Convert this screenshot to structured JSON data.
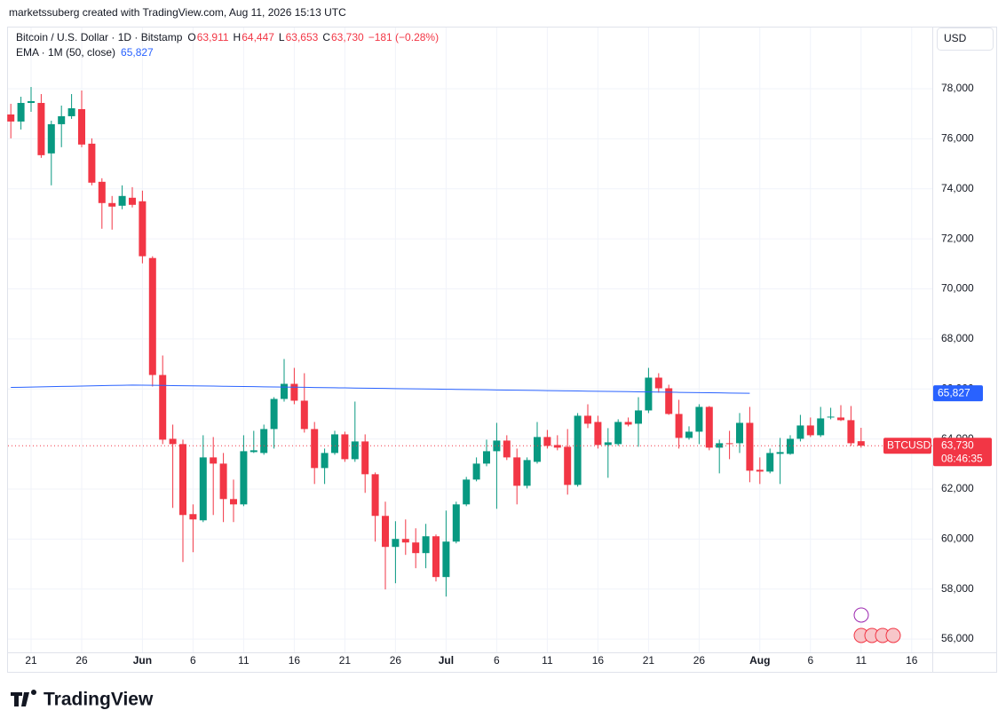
{
  "header": {
    "credit": "marketssuberg created with TradingView.com, Aug 11, 2026 15:13 UTC"
  },
  "legend": {
    "symbol": "Bitcoin / U.S. Dollar · 1D · Bitstamp",
    "ohlc": [
      {
        "key": "O",
        "value": "63,911"
      },
      {
        "key": "H",
        "value": "64,447"
      },
      {
        "key": "L",
        "value": "63,653"
      },
      {
        "key": "C",
        "value": "63,730"
      }
    ],
    "change": "−181 (−0.28%)",
    "indicator": "EMA · 1M (50, close)",
    "indicator_value": "65,827"
  },
  "currency_button": "USD",
  "footer": {
    "logo": "TradingView"
  },
  "chart_data": {
    "type": "candlestick",
    "up_color": "#089981",
    "down_color": "#f23645",
    "grid": true,
    "categories": [
      "2026-05-19",
      "2026-05-20",
      "2026-05-21",
      "2026-05-22",
      "2026-05-23",
      "2026-05-24",
      "2026-05-25",
      "2026-05-26",
      "2026-05-27",
      "2026-05-28",
      "2026-05-29",
      "2026-05-30",
      "2026-05-31",
      "2026-06-01",
      "2026-06-02",
      "2026-06-03",
      "2026-06-04",
      "2026-06-05",
      "2026-06-06",
      "2026-06-07",
      "2026-06-08",
      "2026-06-09",
      "2026-06-10",
      "2026-06-11",
      "2026-06-12",
      "2026-06-13",
      "2026-06-14",
      "2026-06-15",
      "2026-06-16",
      "2026-06-17",
      "2026-06-18",
      "2026-06-19",
      "2026-06-20",
      "2026-06-21",
      "2026-06-22",
      "2026-06-23",
      "2026-06-24",
      "2026-06-25",
      "2026-06-26",
      "2026-06-27",
      "2026-06-28",
      "2026-06-29",
      "2026-06-30",
      "2026-07-01",
      "2026-07-02",
      "2026-07-03",
      "2026-07-04",
      "2026-07-05",
      "2026-07-06",
      "2026-07-07",
      "2026-07-08",
      "2026-07-09",
      "2026-07-10",
      "2026-07-11",
      "2026-07-12",
      "2026-07-13",
      "2026-07-14",
      "2026-07-15",
      "2026-07-16",
      "2026-07-17",
      "2026-07-18",
      "2026-07-19",
      "2026-07-20",
      "2026-07-21",
      "2026-07-22",
      "2026-07-23",
      "2026-07-24",
      "2026-07-25",
      "2026-07-26",
      "2026-07-27",
      "2026-07-28",
      "2026-07-29",
      "2026-07-30",
      "2026-07-31",
      "2026-08-01",
      "2026-08-02",
      "2026-08-03",
      "2026-08-04",
      "2026-08-05",
      "2026-08-06",
      "2026-08-07",
      "2026-08-08",
      "2026-08-09",
      "2026-08-10",
      "2026-08-11"
    ],
    "open": [
      76974,
      76691,
      77435,
      77435,
      75417,
      76585,
      76904,
      77187,
      75806,
      74282,
      73432,
      73325,
      73644,
      73503,
      71235,
      66558,
      64007,
      63795,
      60996,
      60748,
      63263,
      63015,
      61598,
      61385,
      63476,
      63440,
      64397,
      65601,
      66204,
      65531,
      64397,
      62838,
      63440,
      64184,
      63192,
      63901,
      62590,
      60925,
      59685,
      60004,
      59862,
      59437,
      60110,
      58480,
      59897,
      61385,
      62377,
      63015,
      63511,
      63936,
      63263,
      62129,
      63086,
      64078,
      63759,
      63688,
      62164,
      64929,
      64680,
      63759,
      63795,
      64680,
      64610,
      65141,
      66452,
      66027,
      65000,
      64043,
      64291,
      65283,
      63653,
      63830,
      63830,
      64645,
      62767,
      62696,
      63405,
      63405,
      64007,
      64539,
      64149,
      64858,
      64858,
      64752,
      63911
    ],
    "high": [
      77400,
      77683,
      78073,
      77789,
      76726,
      77329,
      77789,
      77931,
      76018,
      74424,
      73715,
      74140,
      74069,
      73928,
      71306,
      67338,
      64574,
      63972,
      61385,
      64149,
      64078,
      63440,
      62377,
      64149,
      64326,
      64574,
      65672,
      67196,
      66842,
      66629,
      64680,
      63617,
      64326,
      64291,
      65495,
      64184,
      62661,
      61492,
      60712,
      60783,
      60429,
      60606,
      60181,
      61137,
      61492,
      62484,
      63263,
      63972,
      64645,
      64149,
      63617,
      63263,
      64680,
      64361,
      64149,
      64397,
      65035,
      65389,
      64929,
      64433,
      64787,
      64858,
      65672,
      66842,
      66629,
      66169,
      65566,
      64503,
      65389,
      65318,
      63972,
      64326,
      65035,
      65283,
      63263,
      63617,
      64043,
      64149,
      64964,
      64858,
      65283,
      65247,
      65354,
      65318,
      64447
    ],
    "low": [
      76018,
      76372,
      77081,
      75240,
      74140,
      75665,
      76797,
      75665,
      74140,
      72404,
      72369,
      73184,
      73255,
      71022,
      66098,
      63795,
      61244,
      59082,
      59472,
      60677,
      60960,
      60677,
      60677,
      61314,
      63440,
      63369,
      63617,
      65495,
      65389,
      64255,
      62200,
      62200,
      63369,
      63086,
      63086,
      61846,
      59897,
      57984,
      58232,
      59366,
      58834,
      58834,
      58303,
      57700,
      59827,
      61314,
      62306,
      62909,
      61208,
      63157,
      61385,
      62023,
      63015,
      63617,
      63547,
      61775,
      62094,
      64433,
      63617,
      62448,
      63724,
      64503,
      63688,
      65035,
      65850,
      64964,
      63617,
      63972,
      63795,
      63547,
      62625,
      63192,
      63440,
      62271,
      62200,
      62625,
      62200,
      63369,
      63901,
      64078,
      64078,
      64787,
      64716,
      63724,
      63653
    ],
    "close": [
      76691,
      77435,
      77506,
      75346,
      76585,
      76904,
      77222,
      75771,
      74247,
      73432,
      73290,
      73715,
      73361,
      71306,
      66558,
      63972,
      63795,
      60960,
      60783,
      63263,
      63015,
      61598,
      61385,
      63511,
      63547,
      64397,
      65601,
      66204,
      65531,
      64397,
      62838,
      63440,
      64184,
      63192,
      63901,
      62590,
      60925,
      59685,
      60004,
      59862,
      59437,
      60110,
      58480,
      59897,
      61385,
      62377,
      63015,
      63511,
      63936,
      63263,
      62129,
      63157,
      64078,
      63724,
      63653,
      62164,
      64929,
      64610,
      63759,
      63865,
      64680,
      64574,
      65141,
      66452,
      66027,
      65000,
      64043,
      64291,
      65283,
      63653,
      63830,
      63795,
      64645,
      62732,
      62696,
      63440,
      63476,
      64007,
      64539,
      64149,
      64822,
      64893,
      64752,
      63830,
      63730
    ],
    "series": [
      {
        "name": "EMA",
        "color": "#2962ff",
        "values": [
          66060,
          66068,
          66076,
          66084,
          66092,
          66100,
          66108,
          66116,
          66124,
          66132,
          66140,
          66148,
          66156,
          66150,
          66145,
          66140,
          66134,
          66129,
          66123,
          66118,
          66113,
          66107,
          66102,
          66096,
          66091,
          66086,
          66080,
          66075,
          66069,
          66064,
          66059,
          66053,
          66048,
          66042,
          66037,
          66032,
          66026,
          66021,
          66015,
          66010,
          66005,
          65999,
          65994,
          65988,
          65983,
          65978,
          65972,
          65967,
          65961,
          65956,
          65951,
          65945,
          65940,
          65934,
          65929,
          65924,
          65918,
          65913,
          65907,
          65902,
          65897,
          65891,
          65886,
          65880,
          65875,
          65870,
          65864,
          65859,
          65853,
          65848,
          65843,
          65837,
          65832,
          65827,
          null,
          null,
          null,
          null,
          null,
          null,
          null,
          null,
          null,
          null,
          null
        ]
      }
    ],
    "ylim": [
      55470,
      80450
    ],
    "yticks": [
      {
        "value": 56000,
        "label": "56,000"
      },
      {
        "value": 58000,
        "label": "58,000"
      },
      {
        "value": 60000,
        "label": "60,000"
      },
      {
        "value": 62000,
        "label": "62,000"
      },
      {
        "value": 64000,
        "label": "64,000"
      },
      {
        "value": 66000,
        "label": "66,000"
      },
      {
        "value": 68000,
        "label": "68,000"
      },
      {
        "value": 70000,
        "label": "70,000"
      },
      {
        "value": 72000,
        "label": "72,000"
      },
      {
        "value": 74000,
        "label": "74,000"
      },
      {
        "value": 76000,
        "label": "76,000"
      },
      {
        "value": 78000,
        "label": "78,000"
      }
    ],
    "xticks": [
      {
        "value": "2026-05-21",
        "label": "21"
      },
      {
        "value": "2026-05-26",
        "label": "26"
      },
      {
        "value": "2026-06-01",
        "label": "Jun"
      },
      {
        "value": "2026-06-06",
        "label": "6"
      },
      {
        "value": "2026-06-11",
        "label": "11"
      },
      {
        "value": "2026-06-16",
        "label": "16"
      },
      {
        "value": "2026-06-21",
        "label": "21"
      },
      {
        "value": "2026-06-26",
        "label": "26"
      },
      {
        "value": "2026-07-01",
        "label": "Jul"
      },
      {
        "value": "2026-07-06",
        "label": "6"
      },
      {
        "value": "2026-07-11",
        "label": "11"
      },
      {
        "value": "2026-07-16",
        "label": "16"
      },
      {
        "value": "2026-07-21",
        "label": "21"
      },
      {
        "value": "2026-07-26",
        "label": "26"
      },
      {
        "value": "2026-08-01",
        "label": "Aug"
      },
      {
        "value": "2026-08-06",
        "label": "6"
      },
      {
        "value": "2026-08-11",
        "label": "11"
      },
      {
        "value": "2026-08-16",
        "label": "16"
      }
    ],
    "price_tags": {
      "ema": "65,827",
      "symbol": "BTCUSD",
      "last": "63,730",
      "countdown": "08:46:35"
    }
  }
}
